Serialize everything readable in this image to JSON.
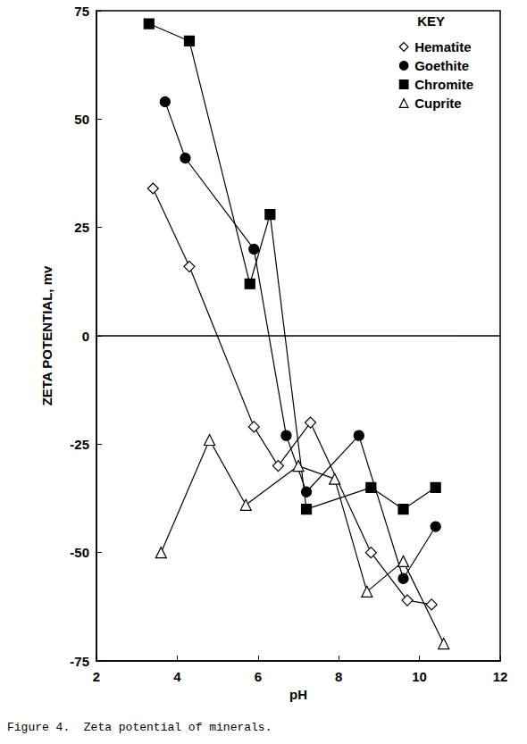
{
  "chart_data": {
    "type": "line",
    "title": "Figure 4.  Zeta potential of minerals.",
    "x_label": "pH",
    "y_label": "ZETA POTENTIAL, mv",
    "annotations": [
      "KEY"
    ],
    "legend": "upper right",
    "grid": false,
    "xlim": [
      2,
      12
    ],
    "xticks": [
      2,
      4,
      6,
      8,
      10,
      12
    ],
    "ylim": [
      -75,
      75
    ],
    "yticks": [
      -75,
      -50,
      -25,
      0,
      25,
      50,
      75
    ],
    "series": [
      {
        "name": "Hematite",
        "color": "#000000",
        "marker": "diamond-open",
        "x": [
          3.4,
          4.3,
          5.9,
          6.5,
          7.3,
          8.8,
          9.7,
          10.3
        ],
        "values": [
          34,
          16,
          -21,
          -30,
          -20,
          -50,
          -61,
          -62
        ]
      },
      {
        "name": "Goethite",
        "color": "#000000",
        "marker": "circle",
        "x": [
          3.7,
          4.2,
          5.9,
          6.7,
          7.2,
          8.5,
          9.6,
          10.4
        ],
        "values": [
          54,
          41,
          20,
          -23,
          -36,
          -23,
          -56,
          -44
        ]
      },
      {
        "name": "Chromite",
        "color": "#000000",
        "marker": "square",
        "x": [
          3.3,
          4.3,
          5.8,
          6.3,
          7.2,
          8.8,
          9.6,
          10.4
        ],
        "values": [
          72,
          68,
          12,
          28,
          -40,
          -35,
          -40,
          -35
        ]
      },
      {
        "name": "Cuprite",
        "color": "#000000",
        "marker": "triangle-open",
        "x": [
          3.6,
          4.8,
          5.7,
          7.0,
          7.9,
          8.7,
          9.6,
          10.6
        ],
        "values": [
          -50,
          -24,
          -39,
          -30,
          -33,
          -59,
          -52,
          -71
        ]
      }
    ]
  }
}
